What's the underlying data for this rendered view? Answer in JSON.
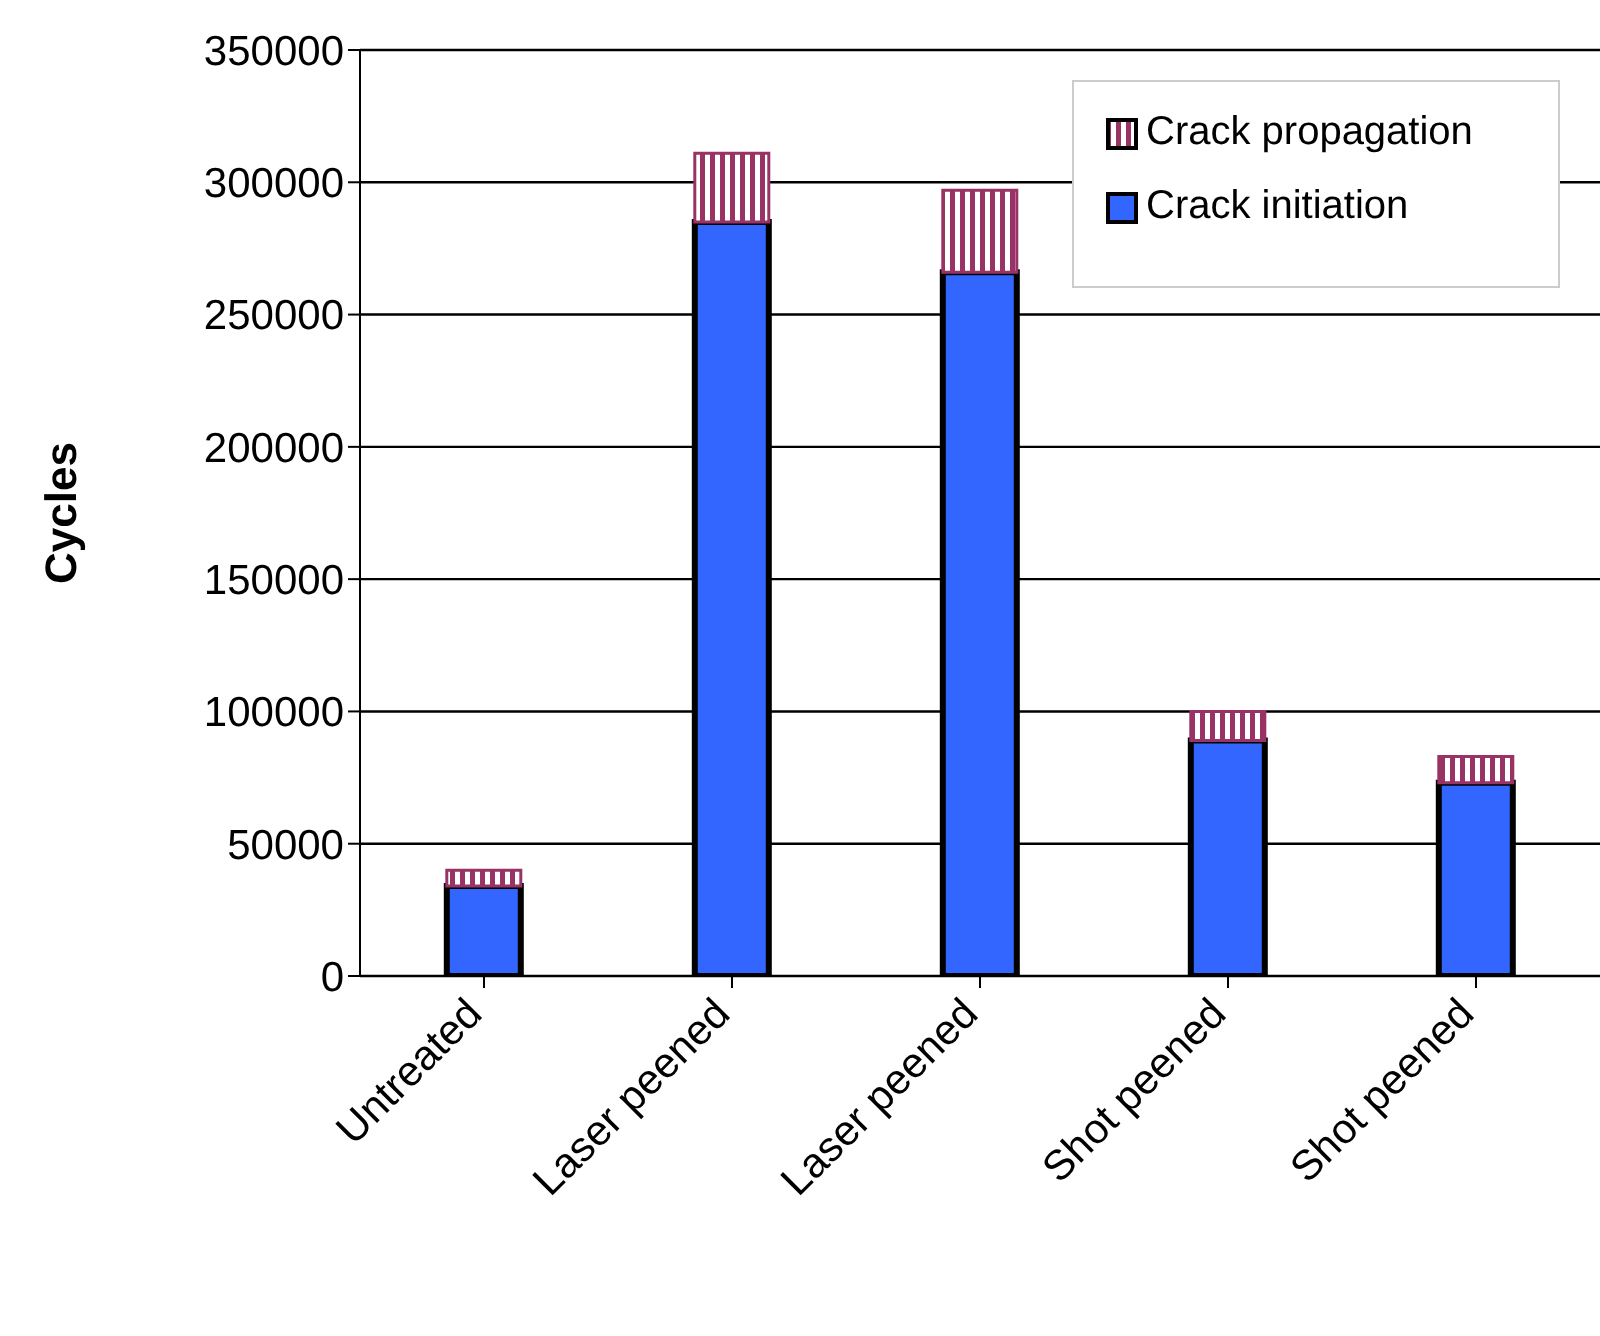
{
  "chart_data": {
    "type": "bar",
    "stacked": true,
    "ylabel": "Cycles",
    "categories": [
      "Untreated",
      "Laser peened",
      "Laser peened",
      "Shot peened",
      "Shot peened"
    ],
    "series": [
      {
        "name": "Crack initiation",
        "color": "#3366ff",
        "values": [
          34000,
          285000,
          266000,
          89000,
          73000
        ]
      },
      {
        "name": "Crack propagation",
        "color": "#993366",
        "values": [
          6000,
          26000,
          31000,
          11000,
          10000
        ]
      }
    ],
    "ylim": [
      0,
      350000
    ],
    "yticks": [
      0,
      50000,
      100000,
      150000,
      200000,
      250000,
      300000,
      350000
    ],
    "grid": "y",
    "legend": "top right"
  }
}
